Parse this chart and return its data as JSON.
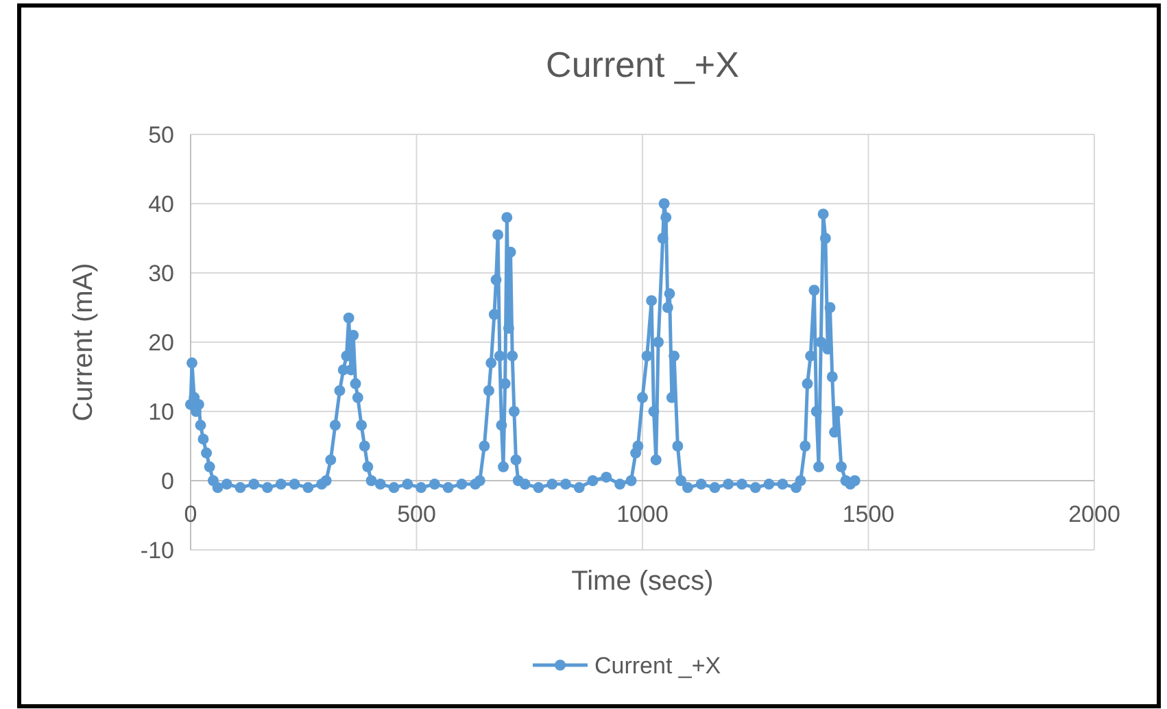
{
  "chart_data": {
    "type": "line",
    "title": "Current _+X",
    "xlabel": "Time (secs)",
    "ylabel": "Current (mA)",
    "xlim": [
      0,
      2000
    ],
    "xticks": [
      0,
      500,
      1000,
      1500,
      2000
    ],
    "ylim": [
      -10,
      50
    ],
    "yticks": [
      -10,
      0,
      10,
      20,
      30,
      40,
      50
    ],
    "grid": true,
    "legend": "bottom",
    "marker": "circle",
    "line_style": "solid",
    "series": [
      {
        "name": "Current _+X",
        "color": "#5b9bd5",
        "x": [
          0,
          3,
          8,
          12,
          18,
          22,
          28,
          35,
          42,
          50,
          60,
          80,
          110,
          140,
          170,
          200,
          230,
          260,
          290,
          300,
          310,
          320,
          330,
          338,
          345,
          350,
          355,
          360,
          365,
          370,
          378,
          385,
          392,
          400,
          420,
          450,
          480,
          510,
          540,
          570,
          600,
          630,
          640,
          650,
          660,
          665,
          672,
          676,
          680,
          684,
          688,
          692,
          696,
          700,
          704,
          708,
          712,
          716,
          720,
          725,
          740,
          770,
          800,
          830,
          860,
          890,
          920,
          950,
          975,
          985,
          990,
          1000,
          1010,
          1020,
          1025,
          1030,
          1035,
          1045,
          1048,
          1052,
          1056,
          1060,
          1065,
          1070,
          1078,
          1085,
          1100,
          1130,
          1160,
          1190,
          1220,
          1250,
          1280,
          1310,
          1340,
          1350,
          1360,
          1365,
          1372,
          1380,
          1385,
          1390,
          1395,
          1400,
          1405,
          1410,
          1415,
          1420,
          1425,
          1432,
          1440,
          1450,
          1460,
          1470
        ],
        "values": [
          11,
          17,
          12,
          10,
          11,
          8,
          6,
          4,
          2,
          0,
          -1,
          -0.5,
          -1,
          -0.5,
          -1,
          -0.5,
          -0.5,
          -1,
          -0.5,
          0,
          3,
          8,
          13,
          16,
          18,
          23.5,
          16,
          21,
          14,
          12,
          8,
          5,
          2,
          0,
          -0.5,
          -1,
          -0.5,
          -1,
          -0.5,
          -1,
          -0.5,
          -0.5,
          0,
          5,
          13,
          17,
          24,
          29,
          35.5,
          18,
          8,
          2,
          14,
          38,
          22,
          33,
          18,
          10,
          3,
          0,
          -0.5,
          -1,
          -0.5,
          -0.5,
          -1,
          0,
          0.5,
          -0.5,
          0,
          4,
          5,
          12,
          18,
          26,
          10,
          3,
          20,
          35,
          40,
          38,
          25,
          27,
          12,
          18,
          5,
          0,
          -1,
          -0.5,
          -1,
          -0.5,
          -0.5,
          -1,
          -0.5,
          -0.5,
          -1,
          0,
          5,
          14,
          18,
          27.5,
          10,
          2,
          20,
          38.5,
          35,
          19,
          25,
          15,
          7,
          10,
          2,
          0,
          -0.5,
          0
        ]
      }
    ]
  }
}
